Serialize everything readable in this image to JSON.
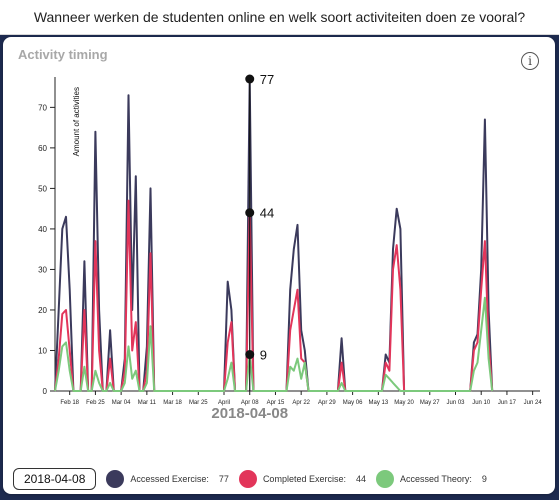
{
  "header": {
    "question": "Wanneer werken de studenten online en welk soort activiteiten doen ze vooral?"
  },
  "card": {
    "title": "Activity timing",
    "info_glyph": "i"
  },
  "legend": {
    "date": "2018-04-08",
    "items": [
      {
        "label": "Accessed Exercise:",
        "value": "77",
        "color": "#3b3a5c"
      },
      {
        "label": "Completed Exercise:",
        "value": "44",
        "color": "#e2355a"
      },
      {
        "label": "Accessed Theory:",
        "value": "9",
        "color": "#7cc97c"
      }
    ]
  },
  "chart_data": {
    "type": "line",
    "title": "Activity timing",
    "ylabel": "Amount of activities",
    "xlabel": "",
    "ylim": [
      0,
      77
    ],
    "yticks": [
      0,
      10,
      20,
      30,
      40,
      50,
      60,
      70
    ],
    "xticks": [
      "Feb 18",
      "Feb 25",
      "Mar 04",
      "Mar 11",
      "Mar 18",
      "Mar 25",
      "April",
      "Apr 08",
      "Apr 15",
      "Apr 22",
      "Apr 29",
      "May 06",
      "May 13",
      "May 20",
      "May 27",
      "Jun 03",
      "Jun 10",
      "Jun 17",
      "Jun 24"
    ],
    "focus": {
      "date": "2018-04-08",
      "values": [
        77,
        44,
        9
      ]
    },
    "series": [
      {
        "name": "Accessed Exercise",
        "color": "#3b3a5c",
        "points": [
          [
            "2018-02-14",
            0
          ],
          [
            "2018-02-15",
            20
          ],
          [
            "2018-02-16",
            40
          ],
          [
            "2018-02-17",
            43
          ],
          [
            "2018-02-18",
            25
          ],
          [
            "2018-02-19",
            0
          ],
          [
            "2018-02-21",
            0
          ],
          [
            "2018-02-22",
            32
          ],
          [
            "2018-02-23",
            0
          ],
          [
            "2018-02-24",
            0
          ],
          [
            "2018-02-25",
            64
          ],
          [
            "2018-02-26",
            20
          ],
          [
            "2018-02-27",
            0
          ],
          [
            "2018-02-28",
            0
          ],
          [
            "2018-03-01",
            15
          ],
          [
            "2018-03-02",
            0
          ],
          [
            "2018-03-04",
            0
          ],
          [
            "2018-03-05",
            8
          ],
          [
            "2018-03-06",
            73
          ],
          [
            "2018-03-07",
            20
          ],
          [
            "2018-03-08",
            53
          ],
          [
            "2018-03-09",
            0
          ],
          [
            "2018-03-10",
            0
          ],
          [
            "2018-03-11",
            11
          ],
          [
            "2018-03-12",
            50
          ],
          [
            "2018-03-13",
            0
          ],
          [
            "2018-04-01",
            0
          ],
          [
            "2018-04-02",
            27
          ],
          [
            "2018-04-03",
            20
          ],
          [
            "2018-04-04",
            0
          ],
          [
            "2018-04-07",
            0
          ],
          [
            "2018-04-08",
            77
          ],
          [
            "2018-04-09",
            0
          ],
          [
            "2018-04-18",
            0
          ],
          [
            "2018-04-19",
            25
          ],
          [
            "2018-04-20",
            35
          ],
          [
            "2018-04-21",
            41
          ],
          [
            "2018-04-22",
            15
          ],
          [
            "2018-04-23",
            10
          ],
          [
            "2018-04-24",
            0
          ],
          [
            "2018-05-02",
            0
          ],
          [
            "2018-05-03",
            13
          ],
          [
            "2018-05-04",
            0
          ],
          [
            "2018-05-14",
            0
          ],
          [
            "2018-05-15",
            9
          ],
          [
            "2018-05-16",
            7
          ],
          [
            "2018-05-17",
            35
          ],
          [
            "2018-05-18",
            45
          ],
          [
            "2018-05-19",
            40
          ],
          [
            "2018-05-20",
            0
          ],
          [
            "2018-06-07",
            0
          ],
          [
            "2018-06-08",
            12
          ],
          [
            "2018-06-09",
            14
          ],
          [
            "2018-06-10",
            30
          ],
          [
            "2018-06-11",
            67
          ],
          [
            "2018-06-12",
            20
          ],
          [
            "2018-06-13",
            0
          ]
        ]
      },
      {
        "name": "Completed Exercise",
        "color": "#e2355a",
        "points": [
          [
            "2018-02-14",
            0
          ],
          [
            "2018-02-15",
            8
          ],
          [
            "2018-02-16",
            19
          ],
          [
            "2018-02-17",
            20
          ],
          [
            "2018-02-18",
            10
          ],
          [
            "2018-02-19",
            0
          ],
          [
            "2018-02-21",
            0
          ],
          [
            "2018-02-22",
            20
          ],
          [
            "2018-02-23",
            0
          ],
          [
            "2018-02-24",
            0
          ],
          [
            "2018-02-25",
            37
          ],
          [
            "2018-02-26",
            10
          ],
          [
            "2018-02-27",
            0
          ],
          [
            "2018-02-28",
            0
          ],
          [
            "2018-03-01",
            8
          ],
          [
            "2018-03-02",
            0
          ],
          [
            "2018-03-04",
            0
          ],
          [
            "2018-03-05",
            5
          ],
          [
            "2018-03-06",
            47
          ],
          [
            "2018-03-07",
            10
          ],
          [
            "2018-03-08",
            17
          ],
          [
            "2018-03-09",
            0
          ],
          [
            "2018-03-10",
            0
          ],
          [
            "2018-03-11",
            5
          ],
          [
            "2018-03-12",
            34
          ],
          [
            "2018-03-13",
            0
          ],
          [
            "2018-04-01",
            0
          ],
          [
            "2018-04-02",
            12
          ],
          [
            "2018-04-03",
            17
          ],
          [
            "2018-04-04",
            0
          ],
          [
            "2018-04-07",
            0
          ],
          [
            "2018-04-08",
            44
          ],
          [
            "2018-04-09",
            0
          ],
          [
            "2018-04-18",
            0
          ],
          [
            "2018-04-19",
            15
          ],
          [
            "2018-04-20",
            20
          ],
          [
            "2018-04-21",
            25
          ],
          [
            "2018-04-22",
            8
          ],
          [
            "2018-04-23",
            7
          ],
          [
            "2018-04-24",
            0
          ],
          [
            "2018-05-02",
            0
          ],
          [
            "2018-05-03",
            7
          ],
          [
            "2018-05-04",
            0
          ],
          [
            "2018-05-14",
            0
          ],
          [
            "2018-05-15",
            7
          ],
          [
            "2018-05-16",
            5
          ],
          [
            "2018-05-17",
            30
          ],
          [
            "2018-05-18",
            36
          ],
          [
            "2018-05-19",
            25
          ],
          [
            "2018-05-20",
            0
          ],
          [
            "2018-06-07",
            0
          ],
          [
            "2018-06-08",
            10
          ],
          [
            "2018-06-09",
            12
          ],
          [
            "2018-06-10",
            25
          ],
          [
            "2018-06-11",
            37
          ],
          [
            "2018-06-12",
            12
          ],
          [
            "2018-06-13",
            0
          ]
        ]
      },
      {
        "name": "Accessed Theory",
        "color": "#7cc97c",
        "points": [
          [
            "2018-02-14",
            0
          ],
          [
            "2018-02-15",
            5
          ],
          [
            "2018-02-16",
            11
          ],
          [
            "2018-02-17",
            12
          ],
          [
            "2018-02-18",
            5
          ],
          [
            "2018-02-19",
            0
          ],
          [
            "2018-02-21",
            0
          ],
          [
            "2018-02-22",
            6
          ],
          [
            "2018-02-23",
            0
          ],
          [
            "2018-02-24",
            0
          ],
          [
            "2018-02-25",
            5
          ],
          [
            "2018-02-26",
            2
          ],
          [
            "2018-02-27",
            0
          ],
          [
            "2018-02-28",
            0
          ],
          [
            "2018-03-01",
            2
          ],
          [
            "2018-03-02",
            0
          ],
          [
            "2018-03-04",
            0
          ],
          [
            "2018-03-05",
            2
          ],
          [
            "2018-03-06",
            11
          ],
          [
            "2018-03-07",
            3
          ],
          [
            "2018-03-08",
            5
          ],
          [
            "2018-03-09",
            0
          ],
          [
            "2018-03-10",
            0
          ],
          [
            "2018-03-11",
            2
          ],
          [
            "2018-03-12",
            16
          ],
          [
            "2018-03-13",
            0
          ],
          [
            "2018-04-01",
            0
          ],
          [
            "2018-04-02",
            3
          ],
          [
            "2018-04-03",
            7
          ],
          [
            "2018-04-04",
            0
          ],
          [
            "2018-04-07",
            0
          ],
          [
            "2018-04-08",
            9
          ],
          [
            "2018-04-09",
            0
          ],
          [
            "2018-04-18",
            0
          ],
          [
            "2018-04-19",
            6
          ],
          [
            "2018-04-20",
            5
          ],
          [
            "2018-04-21",
            8
          ],
          [
            "2018-04-22",
            3
          ],
          [
            "2018-04-23",
            7
          ],
          [
            "2018-04-24",
            0
          ],
          [
            "2018-05-02",
            0
          ],
          [
            "2018-05-03",
            2
          ],
          [
            "2018-05-04",
            0
          ],
          [
            "2018-05-14",
            0
          ],
          [
            "2018-05-15",
            4
          ],
          [
            "2018-05-16",
            3
          ],
          [
            "2018-05-17",
            2
          ],
          [
            "2018-05-18",
            1
          ],
          [
            "2018-05-19",
            0
          ],
          [
            "2018-06-07",
            0
          ],
          [
            "2018-06-08",
            5
          ],
          [
            "2018-06-09",
            7
          ],
          [
            "2018-06-10",
            15
          ],
          [
            "2018-06-11",
            23
          ],
          [
            "2018-06-12",
            8
          ],
          [
            "2018-06-13",
            0
          ]
        ]
      }
    ]
  }
}
